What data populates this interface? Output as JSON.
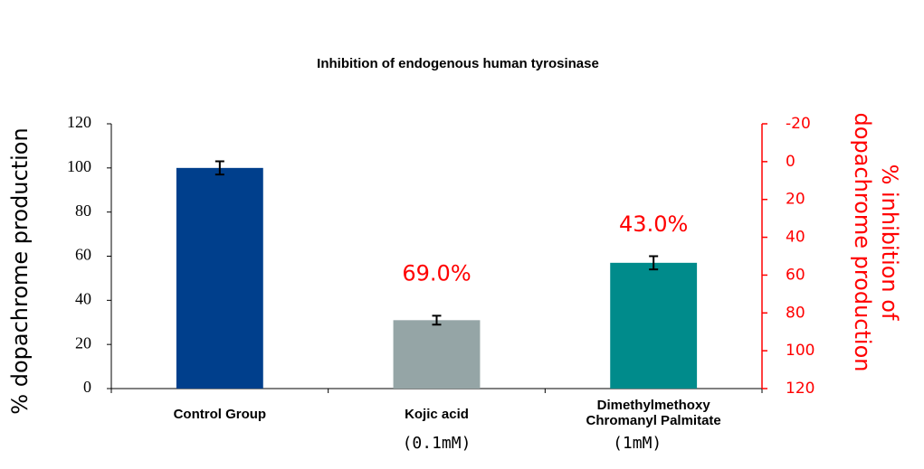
{
  "chart_data": {
    "type": "bar",
    "title": "Inhibition of endogenous human tyrosinase",
    "y_label": "% dopachrome production",
    "y2_label": "% inhibition of dopachrome production",
    "categories": [
      "Control Group",
      "Kojic acid",
      "Dimethylmethoxy Chromanyl Palmitate"
    ],
    "sublabels": [
      null,
      "(0.1mM)",
      "(1mM)"
    ],
    "series": [
      {
        "name": "% dopachrome production",
        "colors": [
          "#003f8c",
          "#95a5a6",
          "#008b8b"
        ],
        "values": [
          100,
          31,
          57
        ],
        "errors": [
          3,
          2,
          3
        ]
      }
    ],
    "inhibition": {
      "axis": "y2",
      "color": "#ff0000",
      "values": [
        null,
        69,
        43
      ],
      "value_labels": [
        null,
        "69.0%",
        "43.0%"
      ]
    },
    "ylim": [
      0,
      120
    ],
    "yticks": [
      0,
      20,
      40,
      60,
      80,
      100,
      120
    ],
    "y2lim": [
      -20,
      120
    ],
    "y2ticks": [
      -20,
      0,
      20,
      40,
      60,
      80,
      100,
      120
    ],
    "y2_inverted": true,
    "y2_color": "#ff0000",
    "grid": false
  }
}
